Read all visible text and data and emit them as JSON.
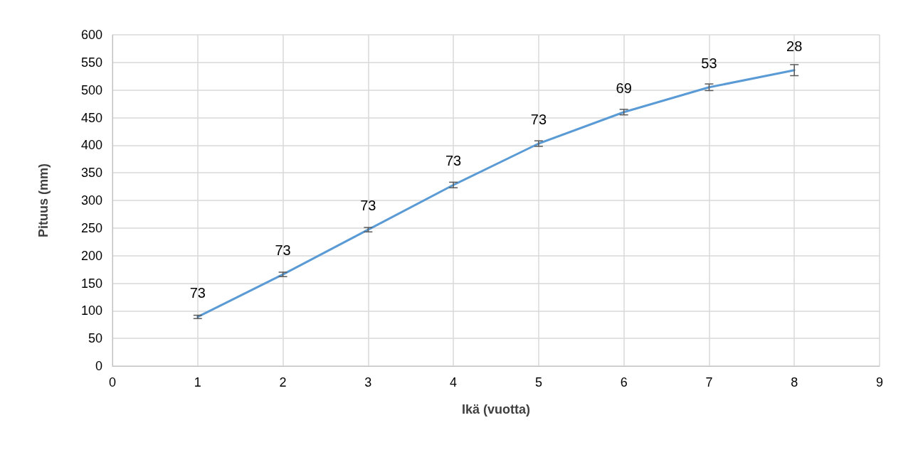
{
  "chart_data": {
    "type": "line",
    "xlabel": "Ikä (vuotta)",
    "ylabel": "Pituus (mm)",
    "x": [
      1,
      2,
      3,
      4,
      5,
      6,
      7,
      8
    ],
    "series": [
      {
        "color": "#5b9bd5",
        "values": [
          89,
          166,
          247,
          328,
          403,
          460,
          505,
          536
        ],
        "errors": [
          3,
          4,
          4,
          5,
          5,
          5,
          6,
          10
        ]
      }
    ],
    "annotations": [
      {
        "text": "73",
        "x": 1,
        "y": 89
      },
      {
        "text": "73",
        "x": 2,
        "y": 166
      },
      {
        "text": "73",
        "x": 3,
        "y": 247
      },
      {
        "text": "73",
        "x": 4,
        "y": 328
      },
      {
        "text": "73",
        "x": 5,
        "y": 403
      },
      {
        "text": "69",
        "x": 6,
        "y": 460
      },
      {
        "text": "53",
        "x": 7,
        "y": 505
      },
      {
        "text": "28",
        "x": 8,
        "y": 536
      }
    ],
    "xlim": [
      0,
      9
    ],
    "xticks": [
      0,
      1,
      2,
      3,
      4,
      5,
      6,
      7,
      8,
      9
    ],
    "ylim": [
      0,
      600
    ],
    "yticks": [
      0,
      50,
      100,
      150,
      200,
      250,
      300,
      350,
      400,
      450,
      500,
      550,
      600
    ],
    "grid": true,
    "marker": "none",
    "line_style": "solid"
  }
}
